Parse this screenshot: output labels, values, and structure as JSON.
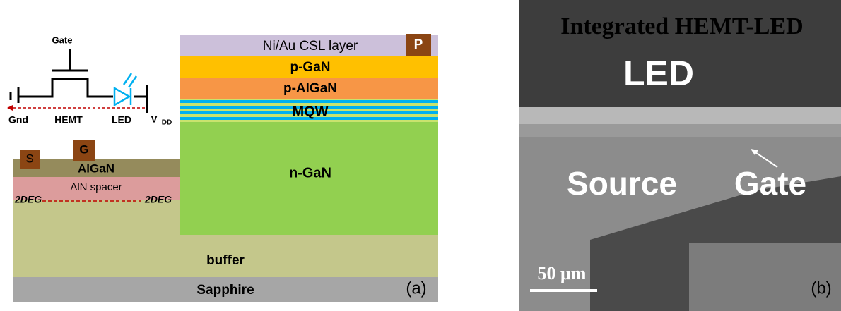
{
  "panel_a": {
    "circuit": {
      "gate": "Gate",
      "gnd": "Gnd",
      "hemt": "HEMT",
      "led": "LED",
      "vdd_main": "V",
      "vdd_sub": "DD"
    },
    "layers": {
      "csl": "Ni/Au CSL layer",
      "p_pad": "P",
      "p_gan": "p-GaN",
      "p_algan": "p-AlGaN",
      "mqw": "MQW",
      "n_gan": "n-GaN",
      "s_pad": "S",
      "g_pad": "G",
      "algan": "AlGaN",
      "aln": "AlN spacer",
      "deg_left": "2DEG",
      "deg_right": "2DEG",
      "buffer": "buffer",
      "sapphire": "Sapphire"
    },
    "label": "(a)"
  },
  "panel_b": {
    "title": "Integrated HEMT-LED",
    "led": "LED",
    "source": "Source",
    "gate": "Gate",
    "scale": "50 μm",
    "label": "(b)"
  }
}
